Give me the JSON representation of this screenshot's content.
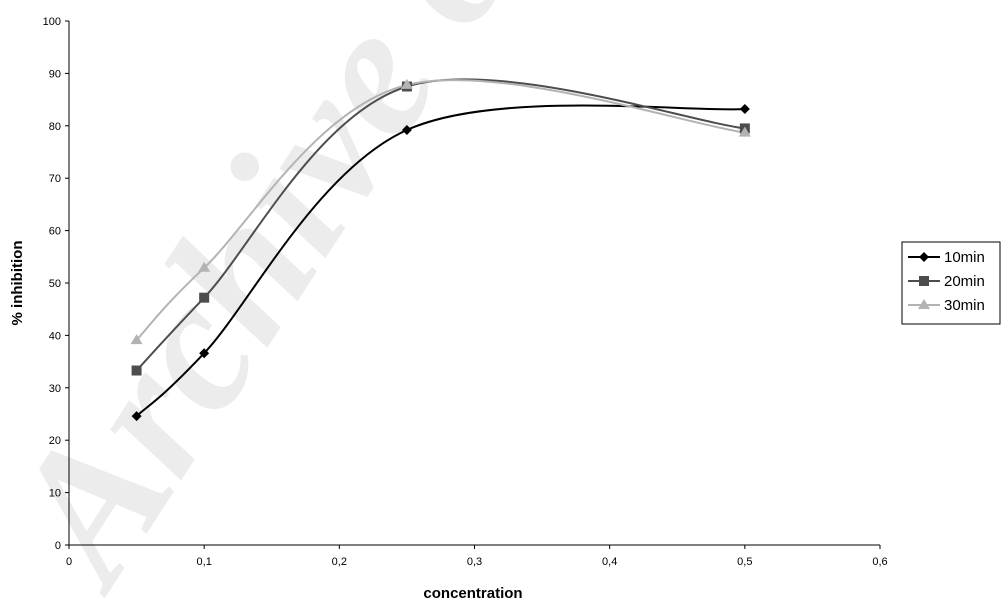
{
  "chart_data": {
    "type": "line",
    "xlabel": "concentration",
    "ylabel": "% inhibition",
    "xlim": [
      0,
      0.6
    ],
    "ylim": [
      0,
      100
    ],
    "x_ticks": [
      0,
      0.1,
      0.2,
      0.3,
      0.4,
      0.5,
      0.6
    ],
    "x_tick_labels": [
      "0",
      "0,1",
      "0,2",
      "0,3",
      "0,4",
      "0,5",
      "0,6"
    ],
    "y_ticks": [
      0,
      10,
      20,
      30,
      40,
      50,
      60,
      70,
      80,
      90,
      100
    ],
    "y_tick_labels": [
      "0",
      "10",
      "20",
      "30",
      "40",
      "50",
      "60",
      "70",
      "80",
      "90",
      "100"
    ],
    "grid": false,
    "smooth": true,
    "legend_position": "right",
    "x": [
      0.05,
      0.1,
      0.25,
      0.5
    ],
    "series": [
      {
        "name": "10min",
        "values": [
          24.6,
          36.6,
          79.2,
          83.2
        ],
        "color": "#000000",
        "marker": "diamond"
      },
      {
        "name": "20min",
        "values": [
          33.3,
          47.2,
          87.5,
          79.5
        ],
        "color": "#4d4d4d",
        "marker": "square"
      },
      {
        "name": "30min",
        "values": [
          39.1,
          52.9,
          87.8,
          78.7
        ],
        "color": "#b3b3b3",
        "marker": "triangle"
      }
    ]
  },
  "watermark": "Archive of SID"
}
